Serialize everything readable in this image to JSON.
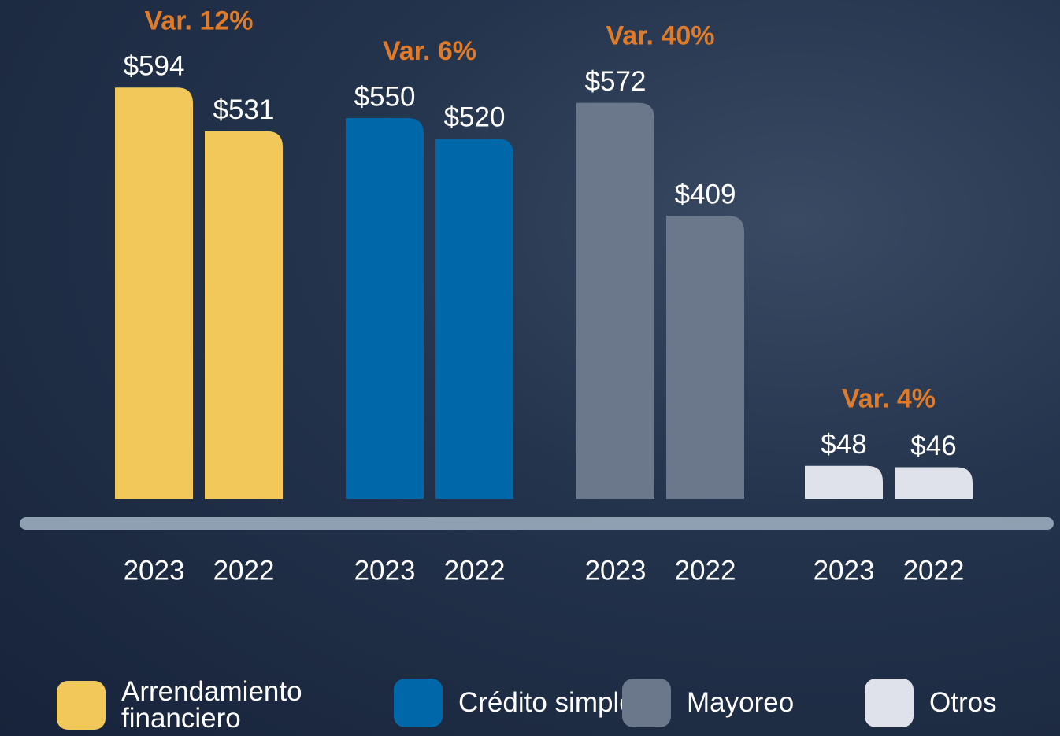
{
  "chart_data": {
    "type": "bar",
    "categories": [
      "2023",
      "2022"
    ],
    "ylim": [
      0,
      600
    ],
    "series": [
      {
        "name": "Arrendamiento financiero",
        "color": "#f2c85b",
        "values": [
          594,
          531
        ],
        "value_labels": [
          "$594",
          "$531"
        ],
        "annotation": "Var. 12%"
      },
      {
        "name": "Crédito simple",
        "color": "#0067a9",
        "values": [
          550,
          520
        ],
        "value_labels": [
          "$550",
          "$520"
        ],
        "annotation": "Var. 6%"
      },
      {
        "name": "Mayoreo",
        "color": "#6b788c",
        "values": [
          572,
          409
        ],
        "value_labels": [
          "$572",
          "$409"
        ],
        "annotation": "Var. 40%"
      },
      {
        "name": "Otros",
        "color": "#dfe2ea",
        "values": [
          48,
          46
        ],
        "value_labels": [
          "$48",
          "$46"
        ],
        "annotation": "Var. 4%"
      }
    ]
  }
}
